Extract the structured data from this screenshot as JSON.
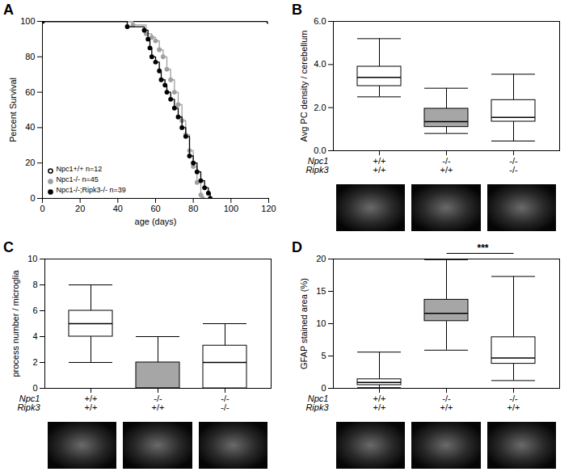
{
  "chart_data": [
    {
      "type": "line",
      "title": "A",
      "xlabel": "age (days)",
      "ylabel": "Percent Survival",
      "xlim": [
        0,
        120
      ],
      "xticks": [
        0,
        20,
        40,
        60,
        80,
        100,
        120
      ],
      "ylim": [
        0,
        100
      ],
      "yticks": [
        0,
        20,
        40,
        60,
        80,
        100
      ],
      "legend": "bottom-left",
      "series": [
        {
          "name": "Npc1+/+ n=12",
          "color": "#000000",
          "marker": "open circle",
          "x": [
            0,
            120
          ],
          "values": [
            100,
            100
          ]
        },
        {
          "name": "Npc1-/- n=45",
          "color": "#a0a0a0",
          "marker": "circle",
          "x": [
            0,
            48,
            55,
            58,
            60,
            62,
            64,
            66,
            68,
            70,
            72,
            74,
            76,
            78,
            80,
            82,
            84,
            85
          ],
          "values": [
            100,
            98,
            93,
            91,
            89,
            84,
            80,
            73,
            67,
            60,
            53,
            44,
            36,
            27,
            18,
            9,
            2,
            0
          ]
        },
        {
          "name": "Npc1-/-;Ripk3-/- n=39",
          "color": "#000000",
          "marker": "circle",
          "x": [
            0,
            45,
            54,
            56,
            57,
            58,
            60,
            62,
            63,
            65,
            66,
            68,
            70,
            72,
            74,
            76,
            78,
            80,
            82,
            84,
            86,
            88,
            89
          ],
          "values": [
            100,
            97,
            95,
            90,
            85,
            80,
            77,
            72,
            67,
            64,
            60,
            56,
            51,
            46,
            40,
            35,
            24,
            20,
            15,
            10,
            6,
            3,
            0
          ]
        }
      ]
    },
    {
      "type": "box",
      "title": "B",
      "ylabel": "Avg PC density / cerebellum",
      "ylim": [
        0,
        6
      ],
      "yticks": [
        0,
        2,
        4,
        6
      ],
      "row_labels": [
        "Npc1",
        "Ripk3"
      ],
      "categories": [
        [
          "+/+",
          "+/+"
        ],
        [
          "-/-",
          "+/+"
        ],
        [
          "-/-",
          "-/-"
        ]
      ],
      "colors": [
        "#ffffff",
        "#a6a6a6",
        "#ffffff"
      ],
      "boxes": [
        {
          "min": 2.5,
          "q1": 3.0,
          "median": 3.4,
          "q3": 3.9,
          "max": 5.2
        },
        {
          "min": 0.8,
          "q1": 1.1,
          "median": 1.35,
          "q3": 1.95,
          "max": 2.9
        },
        {
          "min": 0.45,
          "q1": 1.35,
          "median": 1.55,
          "q3": 2.35,
          "max": 3.55
        }
      ]
    },
    {
      "type": "box",
      "title": "C",
      "ylabel": "process number / microglia",
      "ylim": [
        0,
        10
      ],
      "yticks": [
        0,
        2,
        4,
        6,
        8,
        10
      ],
      "row_labels": [
        "Npc1",
        "Ripk3"
      ],
      "categories": [
        [
          "+/+",
          "+/+"
        ],
        [
          "-/-",
          "+/+"
        ],
        [
          "-/-",
          "-/-"
        ]
      ],
      "colors": [
        "#ffffff",
        "#a6a6a6",
        "#ffffff"
      ],
      "boxes": [
        {
          "min": 2,
          "q1": 4,
          "median": 5,
          "q3": 6,
          "max": 8
        },
        {
          "min": 0,
          "q1": 0,
          "median": 0,
          "q3": 2,
          "max": 4
        },
        {
          "min": 0,
          "q1": 0,
          "median": 2,
          "q3": 3.3,
          "max": 5
        }
      ]
    },
    {
      "type": "box",
      "title": "D",
      "ylabel": "GFAP stained area (%)",
      "ylim": [
        0,
        20
      ],
      "yticks": [
        0,
        5,
        10,
        15,
        20
      ],
      "row_labels": [
        "Npc1",
        "Ripk3"
      ],
      "categories": [
        [
          "+/+",
          "+/+"
        ],
        [
          "-/-",
          "+/+"
        ],
        [
          "-/-",
          "+/+"
        ]
      ],
      "colors": [
        "#ffffff",
        "#a6a6a6",
        "#ffffff"
      ],
      "boxes": [
        {
          "min": 0.1,
          "q1": 0.5,
          "median": 0.9,
          "q3": 1.4,
          "max": 5.6
        },
        {
          "min": 5.9,
          "q1": 10.4,
          "median": 11.6,
          "q3": 13.7,
          "max": 19.9
        },
        {
          "min": 1.2,
          "q1": 3.8,
          "median": 4.7,
          "q3": 7.9,
          "max": 17.3
        }
      ],
      "annotations": [
        {
          "between": [
            1,
            2
          ],
          "label": "***"
        }
      ]
    }
  ]
}
